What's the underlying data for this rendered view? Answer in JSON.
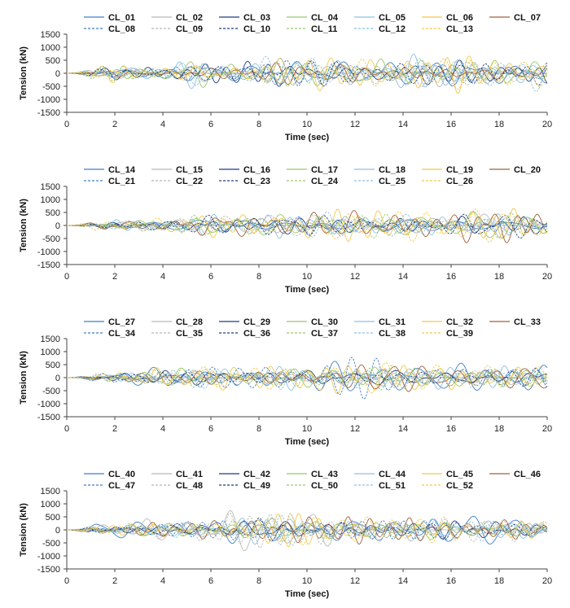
{
  "chart_data": [
    {
      "type": "line",
      "xlabel": "Time (sec)",
      "ylabel": "Tension (kN)",
      "xlim": [
        0,
        20
      ],
      "ylim": [
        -1500,
        1500
      ],
      "xticks": [
        "0",
        "2",
        "4",
        "6",
        "8",
        "10",
        "12",
        "14",
        "16",
        "18",
        "20"
      ],
      "yticks": [
        "1500",
        "1000",
        "500",
        "0",
        "-500",
        "-1000",
        "-1500"
      ],
      "legend_position": "top",
      "series_names": [
        "CL_01",
        "CL_02",
        "CL_03",
        "CL_04",
        "CL_05",
        "CL_06",
        "CL_07",
        "CL_08",
        "CL_09",
        "CL_10",
        "CL_11",
        "CL_12",
        "CL_13"
      ],
      "envelope": {
        "x": [
          0,
          1,
          2,
          3,
          4,
          5,
          6,
          7,
          8,
          9,
          10,
          11,
          12,
          13,
          14,
          15,
          16,
          17,
          18,
          19,
          20
        ],
        "max_abs": [
          40,
          250,
          300,
          250,
          300,
          450,
          550,
          400,
          500,
          650,
          550,
          500,
          550,
          500,
          550,
          650,
          600,
          550,
          500,
          500,
          600
        ]
      }
    },
    {
      "type": "line",
      "xlabel": "Time (sec)",
      "ylabel": "Tension (kN)",
      "xlim": [
        0,
        20
      ],
      "ylim": [
        -1500,
        1500
      ],
      "xticks": [
        "0",
        "2",
        "4",
        "6",
        "8",
        "10",
        "12",
        "14",
        "16",
        "18",
        "20"
      ],
      "yticks": [
        "1500",
        "1000",
        "500",
        "0",
        "-500",
        "-1000",
        "-1500"
      ],
      "legend_position": "top",
      "series_names": [
        "CL_14",
        "CL_15",
        "CL_16",
        "CL_17",
        "CL_18",
        "CL_19",
        "CL_20",
        "CL_21",
        "CL_22",
        "CL_23",
        "CL_24",
        "CL_25",
        "CL_26"
      ],
      "envelope": {
        "x": [
          0,
          1,
          2,
          3,
          4,
          5,
          6,
          7,
          8,
          9,
          10,
          11,
          12,
          13,
          14,
          15,
          16,
          17,
          18,
          19,
          20
        ],
        "max_abs": [
          40,
          150,
          200,
          250,
          300,
          350,
          450,
          450,
          450,
          550,
          550,
          550,
          500,
          450,
          500,
          500,
          500,
          550,
          600,
          650,
          450
        ]
      }
    },
    {
      "type": "line",
      "xlabel": "Time (sec)",
      "ylabel": "Tension (kN)",
      "xlim": [
        0,
        20
      ],
      "ylim": [
        -1500,
        1500
      ],
      "xticks": [
        "0",
        "2",
        "4",
        "6",
        "8",
        "10",
        "12",
        "14",
        "16",
        "18",
        "20"
      ],
      "yticks": [
        "1500",
        "1000",
        "500",
        "0",
        "-500",
        "-1000",
        "-1500"
      ],
      "legend_position": "top",
      "series_names": [
        "CL_27",
        "CL_28",
        "CL_29",
        "CL_30",
        "CL_31",
        "CL_32",
        "CL_33",
        "CL_34",
        "CL_35",
        "CL_36",
        "CL_37",
        "CL_38",
        "CL_39"
      ],
      "envelope": {
        "x": [
          0,
          1,
          2,
          3,
          4,
          5,
          6,
          7,
          8,
          9,
          10,
          11,
          12,
          13,
          14,
          15,
          16,
          17,
          18,
          19,
          20
        ],
        "max_abs": [
          40,
          150,
          200,
          250,
          400,
          450,
          450,
          400,
          450,
          500,
          450,
          500,
          550,
          650,
          550,
          500,
          450,
          450,
          450,
          450,
          450
        ]
      }
    },
    {
      "type": "line",
      "xlabel": "Time (sec)",
      "ylabel": "Tension (kN)",
      "xlim": [
        0,
        20
      ],
      "ylim": [
        -1500,
        1500
      ],
      "xticks": [
        "0",
        "2",
        "4",
        "6",
        "8",
        "10",
        "12",
        "14",
        "16",
        "18",
        "20"
      ],
      "yticks": [
        "1500",
        "1000",
        "500",
        "0",
        "-500",
        "-1000",
        "-1500"
      ],
      "legend_position": "top",
      "series_names": [
        "CL_40",
        "CL_41",
        "CL_42",
        "CL_43",
        "CL_44",
        "CL_45",
        "CL_46",
        "CL_47",
        "CL_48",
        "CL_49",
        "CL_50",
        "CL_51",
        "CL_52"
      ],
      "envelope": {
        "x": [
          0,
          1,
          2,
          3,
          4,
          5,
          6,
          7,
          8,
          9,
          10,
          11,
          12,
          13,
          14,
          15,
          16,
          17,
          18,
          19,
          20
        ],
        "max_abs": [
          40,
          200,
          250,
          300,
          350,
          350,
          400,
          600,
          650,
          650,
          600,
          500,
          450,
          450,
          450,
          550,
          550,
          500,
          450,
          400,
          250
        ]
      }
    }
  ],
  "style": {
    "colors": [
      "#3f7fc8",
      "#b8b8b8",
      "#1f3f7a",
      "#9bc66a",
      "#8ec0e4",
      "#f2c84b",
      "#a0603a"
    ],
    "dashed_series_index_from": 7
  }
}
